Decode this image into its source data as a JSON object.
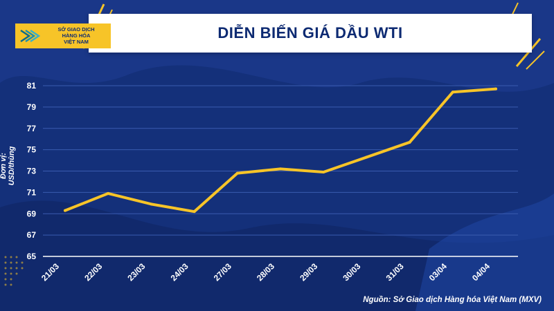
{
  "header": {
    "title": "DIỄN BIẾN GIÁ DẦU WTI",
    "logo_lines": [
      "SỞ GIAO DỊCH",
      "HÀNG HÓA",
      "VIỆT NAM"
    ]
  },
  "source_note": "Nguồn: Sở Giao dịch Hàng hóa Việt Nam (MXV)",
  "colors": {
    "background": "#14307a",
    "line": "#f7c428",
    "grid": "#3a5bb0",
    "accent": "#f7c428"
  },
  "chart_data": {
    "type": "line",
    "title": "DIỄN BIẾN GIÁ DẦU WTI",
    "xlabel": "",
    "ylabel": "Đơn vị: USD/thùng",
    "categories": [
      "21/03",
      "22/03",
      "23/03",
      "24/03",
      "27/03",
      "28/03",
      "29/03",
      "30/03",
      "31/03",
      "03/04",
      "04/04"
    ],
    "series": [
      {
        "name": "WTI",
        "values": [
          69.3,
          70.9,
          69.9,
          69.2,
          72.8,
          73.2,
          72.9,
          74.3,
          75.7,
          80.4,
          80.7
        ]
      }
    ],
    "yticks": [
      65,
      67,
      69,
      71,
      73,
      75,
      77,
      79,
      81
    ],
    "ylim": [
      65,
      81
    ],
    "grid": true
  }
}
